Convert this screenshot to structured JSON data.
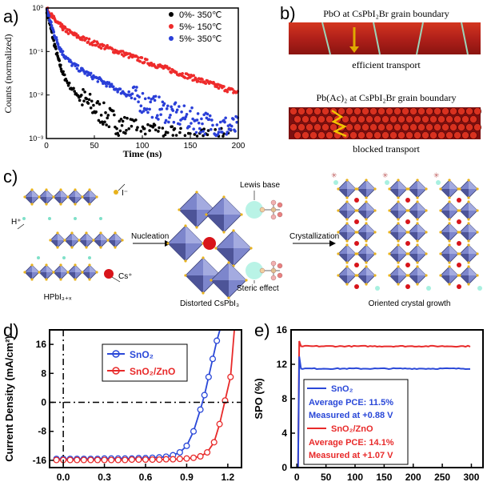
{
  "figure": {
    "panel_labels": [
      "a)",
      "b)",
      "c)",
      "d)",
      "e)"
    ]
  },
  "panel_b": {
    "top_caption": "PbO at  CsPbI₂Br grain boundary",
    "top_label": "efficient transport",
    "bottom_caption": "Pb(Ac)₂ at  CsPbI₂Br grain boundary",
    "bottom_label": "blocked transport",
    "colors": {
      "film": "#b0201a",
      "arrow": "#d8a300"
    }
  },
  "panel_c": {
    "label_iodide": "I⁻",
    "label_proton": "H⁺",
    "label_cesium": "Cs⁺",
    "label_hpbi": "HPbI₃₊ₓ",
    "label_nucleation": "Nucleation",
    "label_lewis": "Lewis base",
    "label_steric": "Steric effect",
    "label_distorted": "Distorted CsPbI₃",
    "label_crystallization": "Crystallization",
    "label_oriented": "Oriented crystal growth",
    "colors": {
      "octa": "#7d86cc",
      "octa_dark": "#3a3f74",
      "iodide": "#e8b21c",
      "proton": "#7fe0c8",
      "cs": "#d8141a"
    }
  },
  "chart_data": [
    {
      "panel": "a",
      "type": "scatter",
      "title": "",
      "xlabel": "Time (ns)",
      "ylabel": "Counts (normalized)",
      "xlim": [
        0,
        200
      ],
      "ylim_log10": [
        -3,
        0
      ],
      "xticks": [
        0,
        50,
        100,
        150,
        200
      ],
      "yticks": [
        "10⁰",
        "10⁻¹",
        "10⁻²",
        "10⁻³"
      ],
      "legend_position": "top-right",
      "series": [
        {
          "name": "0%- 350℃",
          "color": "#000000",
          "decay_ns": [
            4,
            22
          ],
          "amplitude": [
            0.96,
            0.04
          ],
          "floor": 0.0009
        },
        {
          "name": "5%- 150℃",
          "color": "#ee2b2b",
          "decay_ns": [
            8,
            55
          ],
          "amplitude": [
            0.62,
            0.38
          ],
          "floor": 0.0012
        },
        {
          "name": "5%- 350℃",
          "color": "#2a3fd8",
          "decay_ns": [
            5,
            35
          ],
          "amplitude": [
            0.9,
            0.1
          ],
          "floor": 0.0014
        }
      ]
    },
    {
      "panel": "d",
      "type": "line",
      "xlabel": "",
      "ylabel": "Current Density (mA/cm²)",
      "xlim": [
        -0.1,
        1.3
      ],
      "ylim": [
        -18,
        20
      ],
      "xticks": [
        "0.0",
        "0.3",
        "0.6",
        "0.9",
        "1.2"
      ],
      "yticks": [
        "16",
        "8",
        "0",
        "-8",
        "-16"
      ],
      "legend_position": "top-left",
      "series": [
        {
          "name": "SnO₂",
          "color": "#2a48d8",
          "x": [
            -0.05,
            0.0,
            0.05,
            0.1,
            0.15,
            0.2,
            0.25,
            0.3,
            0.35,
            0.4,
            0.45,
            0.5,
            0.55,
            0.6,
            0.65,
            0.7,
            0.75,
            0.8,
            0.85,
            0.9,
            0.95,
            1.0,
            1.03,
            1.06,
            1.09,
            1.12,
            1.15
          ],
          "y": [
            -15.6,
            -15.6,
            -15.6,
            -15.6,
            -15.6,
            -15.6,
            -15.6,
            -15.5,
            -15.5,
            -15.5,
            -15.5,
            -15.5,
            -15.4,
            -15.4,
            -15.3,
            -15.2,
            -15.0,
            -14.6,
            -13.8,
            -12.0,
            -8.0,
            -2.0,
            2.0,
            7.0,
            12.0,
            17.0,
            21.0
          ]
        },
        {
          "name": "SnO₂/ZnO",
          "color": "#e82a2a",
          "x": [
            -0.05,
            0.0,
            0.05,
            0.1,
            0.15,
            0.2,
            0.25,
            0.3,
            0.35,
            0.4,
            0.45,
            0.5,
            0.55,
            0.6,
            0.65,
            0.7,
            0.75,
            0.8,
            0.85,
            0.9,
            0.95,
            1.0,
            1.05,
            1.1,
            1.14,
            1.18,
            1.22,
            1.25
          ],
          "y": [
            -15.9,
            -15.9,
            -15.9,
            -15.9,
            -15.9,
            -15.9,
            -15.9,
            -15.9,
            -15.9,
            -15.9,
            -15.9,
            -15.8,
            -15.8,
            -15.8,
            -15.8,
            -15.8,
            -15.7,
            -15.7,
            -15.6,
            -15.5,
            -15.3,
            -14.9,
            -13.8,
            -11.0,
            -6.0,
            0.5,
            7.0,
            21.0
          ]
        }
      ]
    },
    {
      "panel": "e",
      "type": "line",
      "xlabel": "",
      "ylabel": "SPO (%)",
      "xlim": [
        -10,
        320
      ],
      "ylim": [
        0,
        16
      ],
      "xticks": [
        "0",
        "50",
        "100",
        "150",
        "200",
        "250",
        "300"
      ],
      "yticks": [
        "16",
        "12",
        "8",
        "4",
        "0"
      ],
      "legend_position": "bottom-left",
      "series": [
        {
          "name": "SnO₂",
          "color": "#2a48d8",
          "steady": 11.5,
          "detail_1": "Average PCE: 11.5%",
          "detail_2": "Measured at +0.88 V"
        },
        {
          "name": "SnO₂/ZnO",
          "color": "#e82a2a",
          "steady": 14.1,
          "detail_1": "Average PCE: 14.1%",
          "detail_2": "Measured at +1.07 V"
        }
      ]
    }
  ]
}
